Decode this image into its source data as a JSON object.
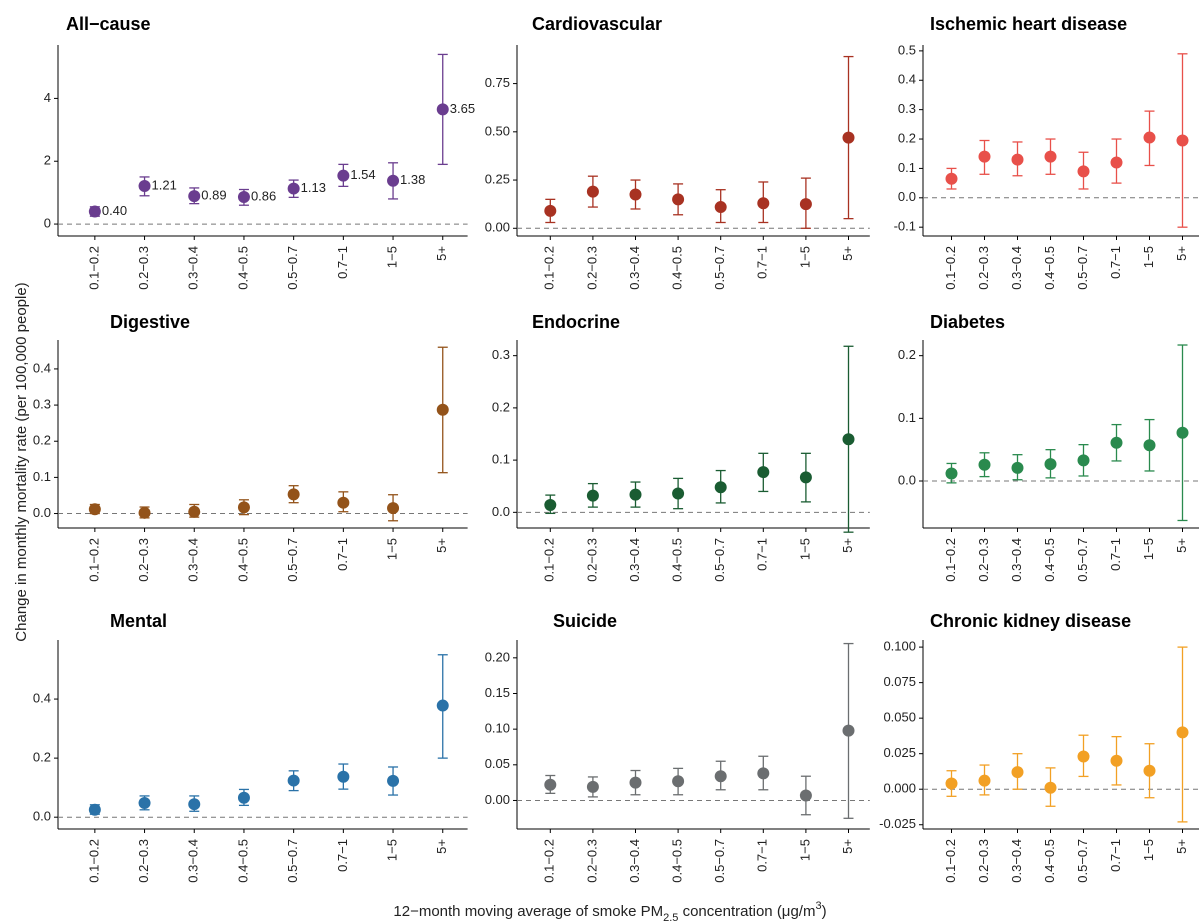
{
  "y_label": "Change in monthly mortality rate (per 100,000 people)",
  "x_label": {
    "text": "12−month moving average of smoke PM",
    "sub": "2.5",
    "mid": " concentration (μg/m",
    "sup": "3",
    "end": ")"
  },
  "chart_data": [
    {
      "type": "errorbar",
      "title": "All−cause",
      "color": "#6a3d8f",
      "categories": [
        "0.1−0.2",
        "0.2−0.3",
        "0.3−0.4",
        "0.4−0.5",
        "0.5−0.7",
        "0.7−1",
        "1−5",
        "5+"
      ],
      "values": [
        0.4,
        1.21,
        0.89,
        0.86,
        1.13,
        1.54,
        1.38,
        3.65
      ],
      "value_labels": [
        "0.40",
        "1.21",
        "0.89",
        "0.86",
        "1.13",
        "1.54",
        "1.38",
        "3.65"
      ],
      "lower": [
        0.25,
        0.9,
        0.65,
        0.6,
        0.85,
        1.2,
        0.8,
        1.9
      ],
      "upper": [
        0.55,
        1.5,
        1.15,
        1.1,
        1.4,
        1.9,
        1.95,
        5.4
      ],
      "ylim": [
        -0.38,
        5.7
      ],
      "yticks": [
        0,
        2,
        4
      ],
      "reference_line": 0
    },
    {
      "type": "errorbar",
      "title": "Cardiovascular",
      "color": "#a83222",
      "categories": [
        "0.1−0.2",
        "0.2−0.3",
        "0.3−0.4",
        "0.4−0.5",
        "0.5−0.7",
        "0.7−1",
        "1−5",
        "5+"
      ],
      "values": [
        0.09,
        0.19,
        0.175,
        0.15,
        0.11,
        0.13,
        0.125,
        0.47
      ],
      "lower": [
        0.03,
        0.11,
        0.1,
        0.07,
        0.03,
        0.03,
        0,
        0.05
      ],
      "upper": [
        0.15,
        0.27,
        0.25,
        0.23,
        0.2,
        0.24,
        0.26,
        0.89
      ],
      "ylim": [
        -0.04,
        0.95
      ],
      "yticks": [
        {
          "value": 0,
          "label": "0.00"
        },
        0.25,
        {
          "value": 0.5,
          "label": "0.50"
        },
        0.75
      ],
      "reference_line": 0
    },
    {
      "type": "errorbar",
      "title": "Ischemic heart disease",
      "color": "#e8504a",
      "categories": [
        "0.1−0.2",
        "0.2−0.3",
        "0.3−0.4",
        "0.4−0.5",
        "0.5−0.7",
        "0.7−1",
        "1−5",
        "5+"
      ],
      "values": [
        0.065,
        0.14,
        0.13,
        0.14,
        0.09,
        0.12,
        0.205,
        0.195
      ],
      "lower": [
        0.03,
        0.08,
        0.075,
        0.08,
        0.03,
        0.05,
        0.11,
        -0.1
      ],
      "upper": [
        0.1,
        0.195,
        0.19,
        0.2,
        0.155,
        0.2,
        0.295,
        0.49
      ],
      "ylim": [
        -0.13,
        0.52
      ],
      "yticks": [
        {
          "value": -0.1,
          "label": "-0.1"
        },
        {
          "value": 0,
          "label": "0.0"
        },
        0.1,
        0.2,
        0.3,
        0.4,
        0.5
      ],
      "reference_line": 0
    },
    {
      "type": "errorbar",
      "title": "Digestive",
      "color": "#93531a",
      "categories": [
        "0.1−0.2",
        "0.2−0.3",
        "0.3−0.4",
        "0.4−0.5",
        "0.5−0.7",
        "0.7−1",
        "1−5",
        "5+"
      ],
      "values": [
        0.012,
        0.002,
        0.005,
        0.017,
        0.053,
        0.03,
        0.015,
        0.287
      ],
      "lower": [
        0,
        -0.012,
        -0.01,
        -0.003,
        0.03,
        0.005,
        -0.02,
        0.113
      ],
      "upper": [
        0.025,
        0.018,
        0.025,
        0.038,
        0.077,
        0.06,
        0.052,
        0.46
      ],
      "ylim": [
        -0.04,
        0.48
      ],
      "yticks": [
        {
          "value": 0,
          "label": "0.0"
        },
        0.1,
        0.2,
        0.3,
        0.4
      ],
      "reference_line": 0
    },
    {
      "type": "errorbar",
      "title": "Endocrine",
      "color": "#1a5c32",
      "categories": [
        "0.1−0.2",
        "0.2−0.3",
        "0.3−0.4",
        "0.4−0.5",
        "0.5−0.7",
        "0.7−1",
        "1−5",
        "5+"
      ],
      "values": [
        0.014,
        0.032,
        0.034,
        0.036,
        0.048,
        0.077,
        0.067,
        0.14
      ],
      "lower": [
        -0.002,
        0.01,
        0.01,
        0.007,
        0.018,
        0.04,
        0.02,
        -0.038
      ],
      "upper": [
        0.033,
        0.055,
        0.058,
        0.065,
        0.08,
        0.113,
        0.113,
        0.318
      ],
      "ylim": [
        -0.03,
        0.33
      ],
      "yticks": [
        {
          "value": 0,
          "label": "0.0"
        },
        0.1,
        0.2,
        0.3
      ],
      "reference_line": 0
    },
    {
      "type": "errorbar",
      "title": "Diabetes",
      "color": "#2a8a4e",
      "categories": [
        "0.1−0.2",
        "0.2−0.3",
        "0.3−0.4",
        "0.4−0.5",
        "0.5−0.7",
        "0.7−1",
        "1−5",
        "5+"
      ],
      "values": [
        0.012,
        0.026,
        0.021,
        0.027,
        0.033,
        0.061,
        0.057,
        0.077
      ],
      "lower": [
        -0.003,
        0.007,
        0.002,
        0.005,
        0.008,
        0.032,
        0.016,
        -0.063
      ],
      "upper": [
        0.028,
        0.045,
        0.042,
        0.05,
        0.058,
        0.09,
        0.098,
        0.217
      ],
      "ylim": [
        -0.075,
        0.225
      ],
      "yticks": [
        {
          "value": 0,
          "label": "0.0"
        },
        0.1,
        0.2
      ],
      "reference_line": 0
    },
    {
      "type": "errorbar",
      "title": "Mental",
      "color": "#2a72a8",
      "categories": [
        "0.1−0.2",
        "0.2−0.3",
        "0.3−0.4",
        "0.4−0.5",
        "0.5−0.7",
        "0.7−1",
        "1−5",
        "5+"
      ],
      "values": [
        0.025,
        0.048,
        0.044,
        0.066,
        0.124,
        0.137,
        0.123,
        0.378
      ],
      "lower": [
        0.01,
        0.025,
        0.02,
        0.04,
        0.09,
        0.095,
        0.075,
        0.2
      ],
      "upper": [
        0.042,
        0.072,
        0.072,
        0.094,
        0.157,
        0.18,
        0.17,
        0.55
      ],
      "ylim": [
        -0.04,
        0.6
      ],
      "yticks": [
        {
          "value": 0,
          "label": "0.0"
        },
        0.2,
        0.4
      ],
      "reference_line": 0
    },
    {
      "type": "errorbar",
      "title": "Suicide",
      "color": "#6b6e70",
      "categories": [
        "0.1−0.2",
        "0.2−0.3",
        "0.3−0.4",
        "0.4−0.5",
        "0.5−0.7",
        "0.7−1",
        "1−5",
        "5+"
      ],
      "values": [
        0.022,
        0.019,
        0.025,
        0.027,
        0.034,
        0.038,
        0.007,
        0.098
      ],
      "lower": [
        0.01,
        0.005,
        0.008,
        0.008,
        0.015,
        0.015,
        -0.02,
        -0.025
      ],
      "upper": [
        0.035,
        0.033,
        0.042,
        0.045,
        0.055,
        0.062,
        0.034,
        0.22
      ],
      "ylim": [
        -0.04,
        0.225
      ],
      "yticks": [
        {
          "value": 0,
          "label": "0.00"
        },
        0.05,
        {
          "value": 0.1,
          "label": "0.10"
        },
        0.15,
        {
          "value": 0.2,
          "label": "0.20"
        }
      ],
      "reference_line": 0
    },
    {
      "type": "errorbar",
      "title": "Chronic kidney disease",
      "color": "#f2a024",
      "categories": [
        "0.1−0.2",
        "0.2−0.3",
        "0.3−0.4",
        "0.4−0.5",
        "0.5−0.7",
        "0.7−1",
        "1−5",
        "5+"
      ],
      "values": [
        0.004,
        0.006,
        0.012,
        0.001,
        0.023,
        0.02,
        0.013,
        0.04
      ],
      "lower": [
        -0.005,
        -0.004,
        0,
        -0.012,
        0.009,
        0.003,
        -0.006,
        -0.023
      ],
      "upper": [
        0.013,
        0.017,
        0.025,
        0.015,
        0.038,
        0.037,
        0.032,
        0.1
      ],
      "ylim": [
        -0.028,
        0.105
      ],
      "yticks": [
        {
          "value": -0.025,
          "label": "-0.025"
        },
        {
          "value": 0,
          "label": "0.000"
        },
        0.025,
        {
          "value": 0.05,
          "label": "0.050"
        },
        0.075,
        {
          "value": 0.1,
          "label": "0.100"
        }
      ],
      "reference_line": 0
    }
  ]
}
